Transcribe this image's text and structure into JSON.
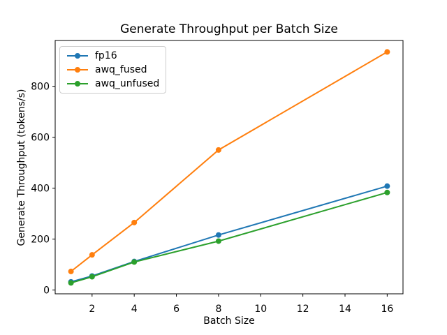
{
  "figure": {
    "background": "#ffffff"
  },
  "chart_data": {
    "type": "line",
    "title": "Generate Throughput per Batch Size",
    "xlabel": "Batch Size",
    "ylabel": "Generate Throughput (tokens/s)",
    "x": [
      1,
      2,
      4,
      8,
      16
    ],
    "series": [
      {
        "name": "fp16",
        "color": "#1f77b4",
        "values": [
          32,
          55,
          112,
          216,
          408
        ]
      },
      {
        "name": "awq_fused",
        "color": "#ff7f0e",
        "values": [
          73,
          138,
          265,
          550,
          935
        ]
      },
      {
        "name": "awq_unfused",
        "color": "#2ca02c",
        "values": [
          28,
          52,
          110,
          192,
          383
        ]
      }
    ],
    "x_ticks": [
      2,
      4,
      6,
      8,
      10,
      12,
      14,
      16
    ],
    "y_ticks": [
      0,
      200,
      400,
      600,
      800
    ],
    "xlim": [
      0.25,
      16.75
    ],
    "ylim": [
      -15,
      980
    ],
    "grid": false,
    "legend_position": "upper left",
    "marker": "circle",
    "line_width": 2,
    "marker_radius": 4,
    "axis_color": "#000000",
    "text_color": "#000000",
    "legend_border_color": "#cccccc"
  }
}
